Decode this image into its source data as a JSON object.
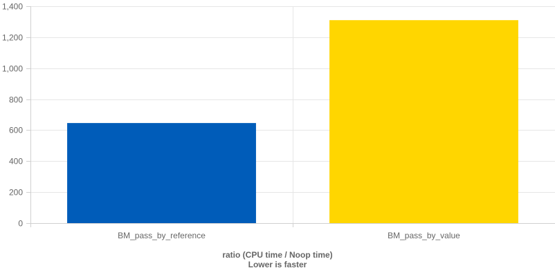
{
  "chart_data": {
    "type": "bar",
    "categories": [
      "BM_pass_by_reference",
      "BM_pass_by_value"
    ],
    "values": [
      646,
      1310
    ],
    "colors": [
      "#005cb9",
      "#ffd600"
    ],
    "ylim": [
      0,
      1400
    ],
    "yticks": [
      0,
      200,
      400,
      600,
      800,
      1000,
      1200,
      1400
    ],
    "ytick_labels": [
      "0",
      "200",
      "400",
      "600",
      "800",
      "1,000",
      "1,200",
      "1,400"
    ],
    "xlabel_line1": "ratio (CPU time / Noop time)",
    "xlabel_line2": "Lower is faster",
    "grid": true,
    "legend": "none"
  }
}
